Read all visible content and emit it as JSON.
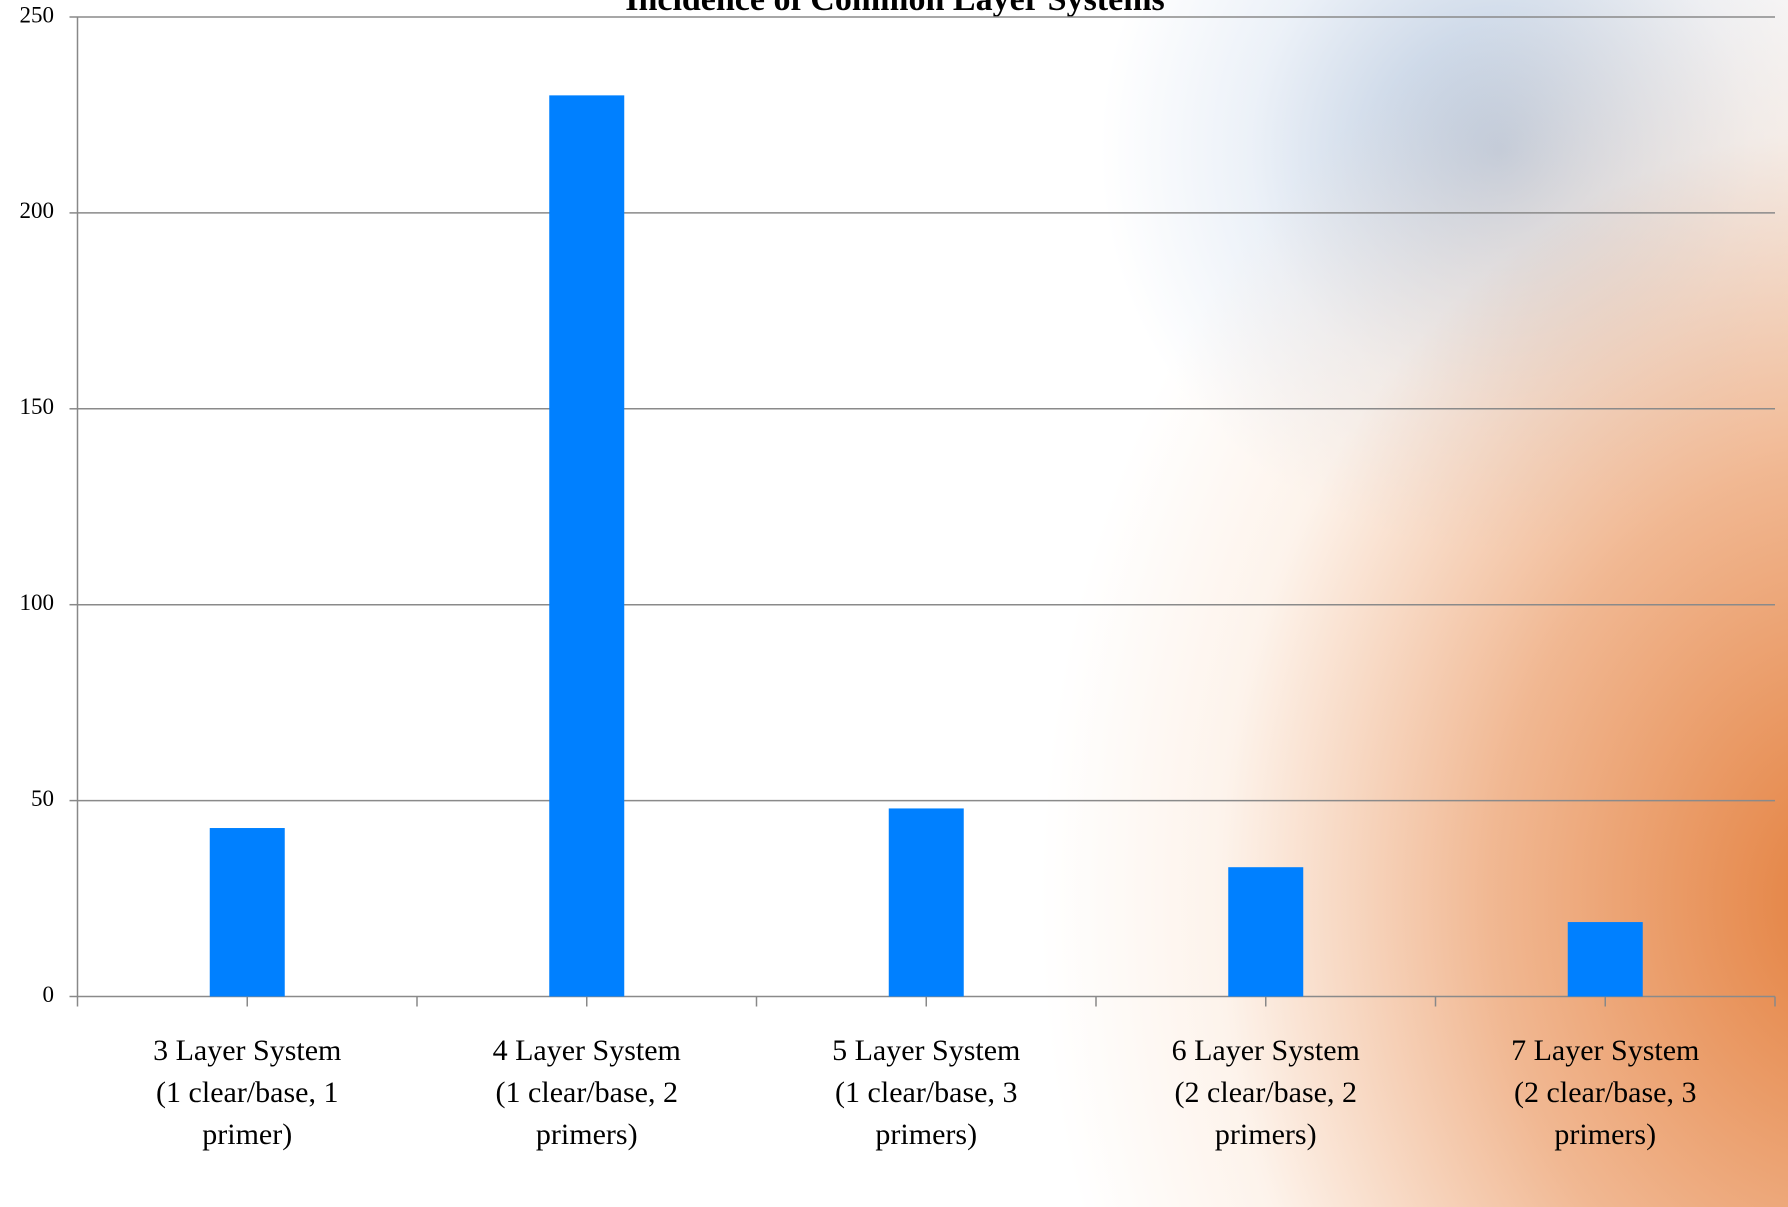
{
  "chart_data": {
    "type": "bar",
    "title": "Incidence of Common Layer Systems",
    "categories": [
      "3 Layer System (1 clear/base, 1 primer)",
      "4 Layer System (1 clear/base, 2 primers)",
      "5 Layer System (1 clear/base, 3 primers)",
      "6 Layer System (2 clear/base, 2 primers)",
      "7 Layer System (2 clear/base, 3 primers)"
    ],
    "values": [
      43,
      230,
      48,
      33,
      19
    ],
    "color": "#0080ff",
    "ylim": [
      0,
      250
    ],
    "yticks": [
      0,
      50,
      100,
      150,
      200,
      250
    ],
    "grid": true
  }
}
